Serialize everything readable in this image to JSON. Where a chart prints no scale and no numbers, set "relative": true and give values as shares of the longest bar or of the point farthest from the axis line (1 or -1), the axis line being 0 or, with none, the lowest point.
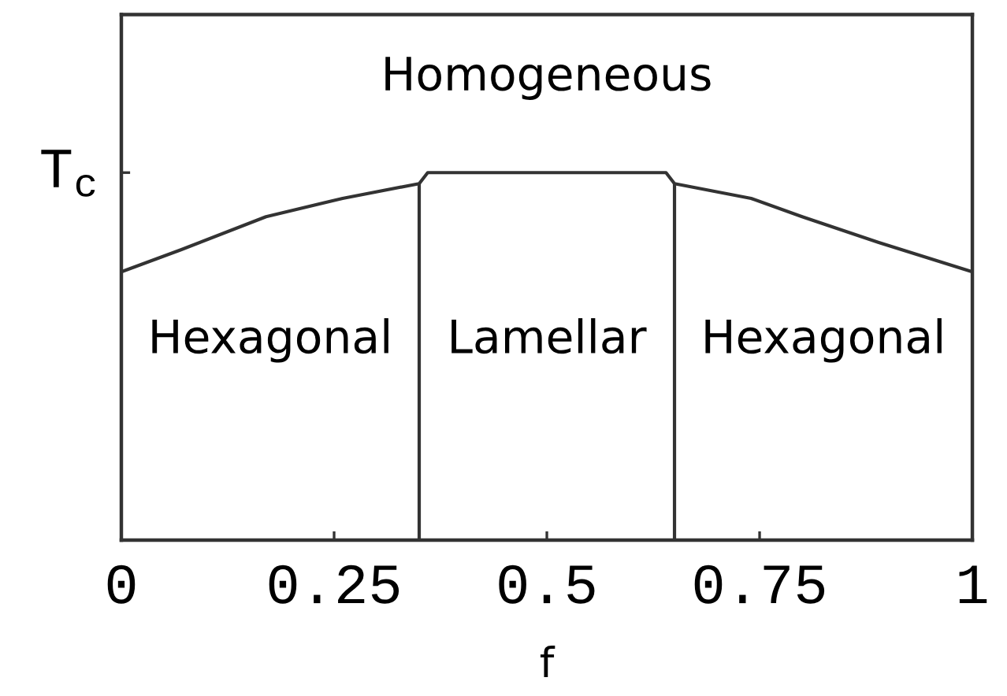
{
  "chart_data": {
    "type": "line",
    "xlabel": "f",
    "relative": true,
    "xlim": [
      0,
      1
    ],
    "xticks": [
      0,
      0.25,
      0.5,
      0.75,
      1
    ],
    "series": [
      {
        "color": "#333333",
        "x": [
          0,
          0.07,
          0.17,
          0.26,
          0.35,
          0.36,
          0.5,
          0.64,
          0.65,
          0.74,
          0.8,
          0.89,
          1
        ],
        "values": [
          0.73,
          0.79,
          0.88,
          0.93,
          0.97,
          1.0,
          1.0,
          1.0,
          0.97,
          0.93,
          0.88,
          0.81,
          0.73
        ]
      },
      {
        "color": "#333333",
        "x": [
          0.35,
          0.35
        ],
        "values": [
          0,
          0.97
        ]
      },
      {
        "color": "#333333",
        "x": [
          0.65,
          0.65
        ],
        "values": [
          0,
          0.97
        ]
      }
    ],
    "annotations": [
      "T$_{c}$",
      "Homogeneous",
      "Hexagonal",
      "Lamellar",
      "Hexagonal"
    ]
  }
}
